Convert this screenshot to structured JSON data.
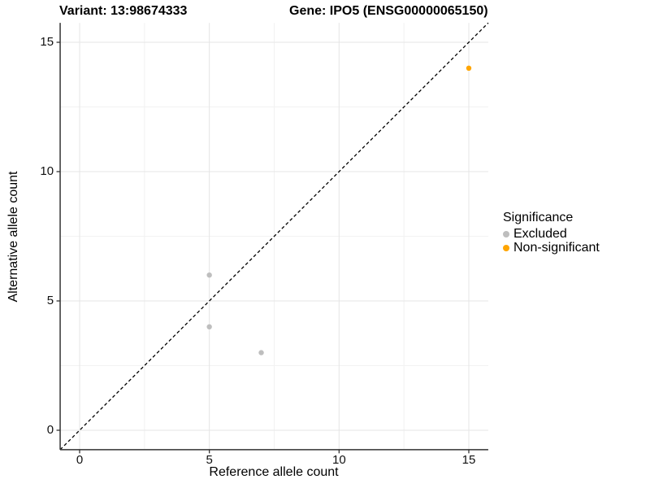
{
  "header": {
    "variant_title": "Variant: 13:98674333",
    "gene_title": "Gene: IPO5 (ENSG00000065150)"
  },
  "chart_data": {
    "type": "scatter",
    "title": "Variant: 13:98674333   Gene: IPO5 (ENSG00000065150)",
    "xlabel": "Reference allele count",
    "ylabel": "Alternative allele count",
    "xlim": [
      -0.75,
      15.75
    ],
    "ylim": [
      -0.75,
      15.75
    ],
    "x_ticks": [
      0,
      5,
      10,
      15
    ],
    "y_ticks": [
      0,
      5,
      10,
      15
    ],
    "x_minor_ticks": [
      2.5,
      7.5,
      12.5
    ],
    "y_minor_ticks": [
      2.5,
      7.5,
      12.5
    ],
    "grid": true,
    "legend_position": "right",
    "series": [
      {
        "name": "Excluded",
        "color": "#BEBEBE",
        "points": [
          [
            5,
            6
          ],
          [
            5,
            4
          ],
          [
            7,
            3
          ]
        ]
      },
      {
        "name": "Non-significant",
        "color": "#FFA500",
        "points": [
          [
            15,
            14
          ]
        ]
      }
    ],
    "identity_line": {
      "slope": 1,
      "intercept": 0,
      "style": "dashed",
      "color": "#000000"
    }
  },
  "legend": {
    "title": "Significance",
    "items": [
      {
        "label": "Excluded",
        "color": "#BEBEBE"
      },
      {
        "label": "Non-significant",
        "color": "#FFA500"
      }
    ]
  },
  "colors": {
    "grid_major": "#E5E5E5",
    "grid_minor": "#F2F2F2",
    "axis_line": "#333333",
    "tick_mark": "#333333"
  }
}
